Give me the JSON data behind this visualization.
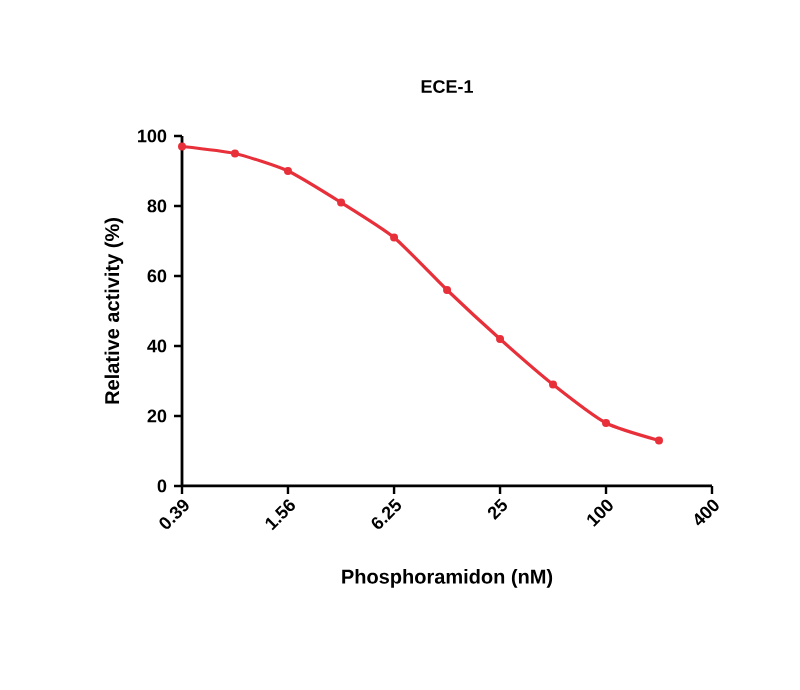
{
  "chart_data": {
    "type": "line",
    "title": "ECE-1",
    "xlabel": "Phosphoramidon (nM)",
    "ylabel": "Relative activity (%)",
    "log": "x",
    "xlim": [
      0.39,
      400
    ],
    "ylim": [
      0,
      100
    ],
    "xticks": [
      0.39,
      1.56,
      6.25,
      25,
      100,
      400
    ],
    "yticks": [
      0,
      20,
      40,
      60,
      80,
      100
    ],
    "marker": "circle",
    "line_style": "solid",
    "x": [
      0.39,
      0.78,
      1.56,
      3.125,
      6.25,
      12.5,
      25,
      50,
      100,
      200
    ],
    "series": [
      {
        "color": "#e8303a",
        "values": [
          97,
          95,
          90,
          81,
          71,
          56,
          42,
          29,
          18,
          13
        ]
      }
    ]
  }
}
